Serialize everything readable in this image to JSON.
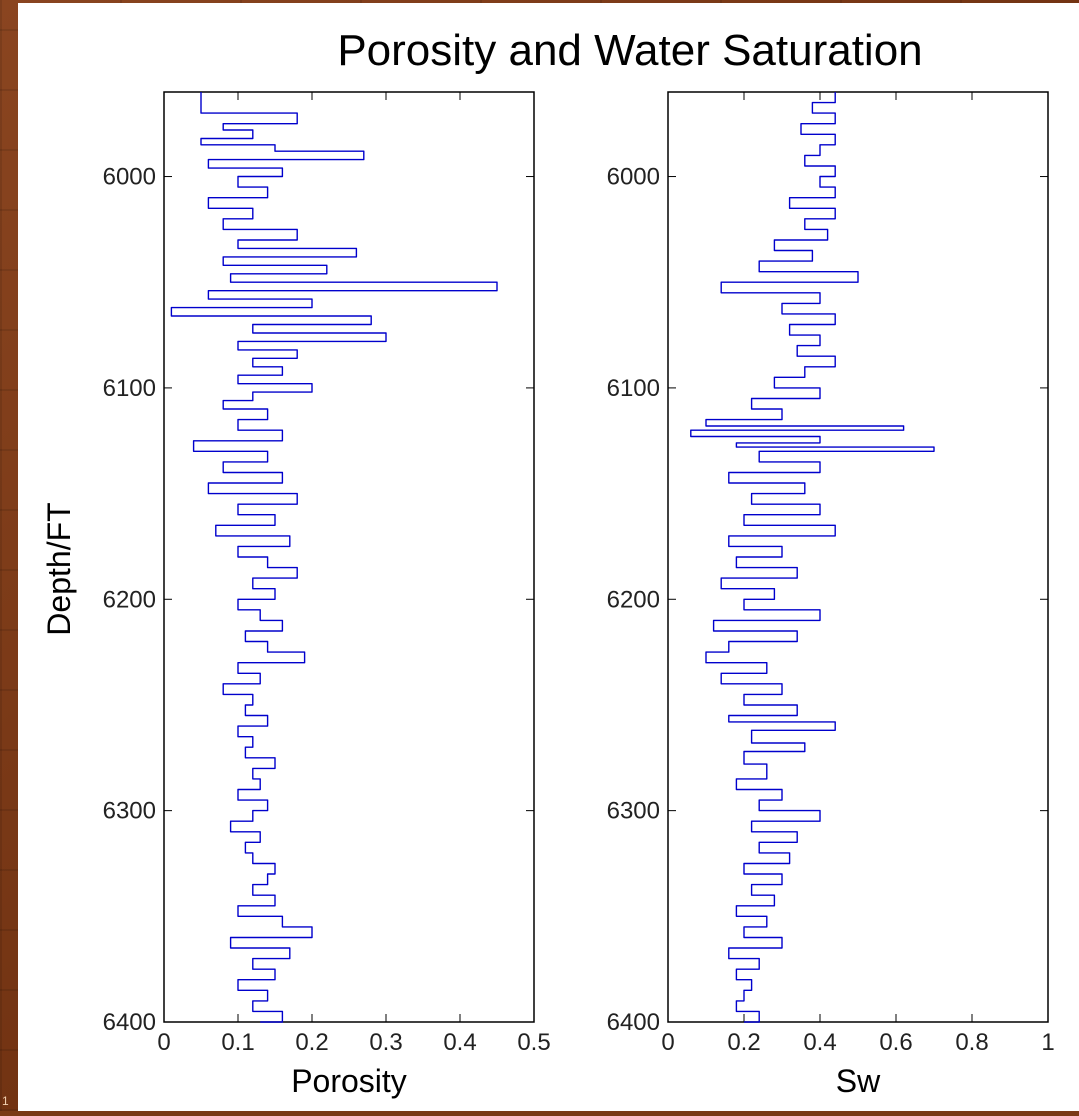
{
  "slide": {
    "page_mark": "1"
  },
  "chart_data": [
    {
      "type": "line",
      "title": "Porosity and Water Saturation",
      "xlabel": "Porosity",
      "ylabel": "Depth/FT",
      "xlim": [
        0,
        0.5
      ],
      "ylim": [
        5960,
        6400
      ],
      "y_reversed": true,
      "x_ticks": [
        "0",
        "0.1",
        "0.2",
        "0.3",
        "0.4",
        "0.5"
      ],
      "y_ticks": [
        "6000",
        "6100",
        "6200",
        "6300",
        "6400"
      ],
      "series": [
        {
          "color": "#0000cc",
          "depth": [
            5960,
            5970,
            5975,
            5978,
            5982,
            5985,
            5988,
            5992,
            5996,
            6000,
            6005,
            6010,
            6015,
            6020,
            6025,
            6030,
            6034,
            6038,
            6042,
            6046,
            6050,
            6054,
            6058,
            6062,
            6066,
            6070,
            6074,
            6078,
            6082,
            6086,
            6090,
            6094,
            6098,
            6102,
            6106,
            6110,
            6115,
            6120,
            6125,
            6130,
            6135,
            6140,
            6145,
            6150,
            6155,
            6160,
            6165,
            6170,
            6175,
            6180,
            6185,
            6190,
            6195,
            6200,
            6205,
            6210,
            6215,
            6220,
            6225,
            6230,
            6235,
            6240,
            6245,
            6250,
            6255,
            6260,
            6265,
            6270,
            6275,
            6280,
            6285,
            6290,
            6295,
            6300,
            6305,
            6310,
            6315,
            6320,
            6325,
            6330,
            6335,
            6340,
            6345,
            6350,
            6355,
            6360,
            6365,
            6370,
            6375,
            6380,
            6385,
            6390,
            6395,
            6400
          ],
          "values": [
            0.05,
            0.18,
            0.08,
            0.12,
            0.05,
            0.15,
            0.27,
            0.06,
            0.16,
            0.1,
            0.14,
            0.06,
            0.12,
            0.08,
            0.18,
            0.1,
            0.26,
            0.08,
            0.22,
            0.09,
            0.45,
            0.06,
            0.2,
            0.01,
            0.28,
            0.12,
            0.3,
            0.1,
            0.18,
            0.12,
            0.16,
            0.1,
            0.2,
            0.12,
            0.08,
            0.14,
            0.1,
            0.16,
            0.04,
            0.14,
            0.08,
            0.16,
            0.06,
            0.18,
            0.1,
            0.15,
            0.07,
            0.17,
            0.1,
            0.14,
            0.18,
            0.12,
            0.15,
            0.1,
            0.13,
            0.16,
            0.11,
            0.14,
            0.19,
            0.1,
            0.13,
            0.08,
            0.12,
            0.11,
            0.14,
            0.1,
            0.12,
            0.11,
            0.15,
            0.12,
            0.13,
            0.1,
            0.14,
            0.12,
            0.09,
            0.13,
            0.11,
            0.12,
            0.15,
            0.14,
            0.12,
            0.15,
            0.1,
            0.16,
            0.2,
            0.09,
            0.17,
            0.12,
            0.15,
            0.1,
            0.14,
            0.12,
            0.16,
            0.13
          ]
        }
      ]
    },
    {
      "type": "line",
      "xlabel": "Sw",
      "xlim": [
        0,
        1
      ],
      "ylim": [
        5960,
        6400
      ],
      "y_reversed": true,
      "x_ticks": [
        "0",
        "0.2",
        "0.4",
        "0.6",
        "0.8",
        "1"
      ],
      "y_ticks": [
        "6000",
        "6100",
        "6200",
        "6300",
        "6400"
      ],
      "series": [
        {
          "color": "#0000cc",
          "depth": [
            5960,
            5965,
            5970,
            5975,
            5980,
            5985,
            5990,
            5995,
            6000,
            6005,
            6010,
            6015,
            6020,
            6025,
            6030,
            6035,
            6040,
            6045,
            6050,
            6055,
            6060,
            6065,
            6070,
            6075,
            6080,
            6085,
            6090,
            6095,
            6100,
            6105,
            6110,
            6115,
            6118,
            6120,
            6123,
            6126,
            6128,
            6130,
            6135,
            6140,
            6145,
            6150,
            6155,
            6160,
            6165,
            6170,
            6175,
            6180,
            6185,
            6190,
            6195,
            6200,
            6205,
            6210,
            6215,
            6220,
            6225,
            6230,
            6235,
            6240,
            6245,
            6250,
            6255,
            6258,
            6262,
            6268,
            6272,
            6278,
            6285,
            6290,
            6295,
            6300,
            6305,
            6310,
            6315,
            6320,
            6325,
            6330,
            6335,
            6340,
            6345,
            6350,
            6355,
            6360,
            6365,
            6370,
            6375,
            6380,
            6385,
            6390,
            6395,
            6400
          ],
          "values": [
            0.44,
            0.38,
            0.44,
            0.35,
            0.44,
            0.4,
            0.36,
            0.44,
            0.4,
            0.44,
            0.32,
            0.44,
            0.36,
            0.42,
            0.28,
            0.38,
            0.24,
            0.5,
            0.14,
            0.4,
            0.3,
            0.44,
            0.32,
            0.4,
            0.34,
            0.44,
            0.36,
            0.28,
            0.4,
            0.22,
            0.3,
            0.1,
            0.62,
            0.06,
            0.4,
            0.18,
            0.7,
            0.24,
            0.4,
            0.16,
            0.36,
            0.22,
            0.4,
            0.2,
            0.44,
            0.16,
            0.3,
            0.18,
            0.34,
            0.14,
            0.28,
            0.2,
            0.4,
            0.12,
            0.34,
            0.16,
            0.1,
            0.26,
            0.14,
            0.3,
            0.2,
            0.34,
            0.16,
            0.44,
            0.22,
            0.36,
            0.2,
            0.26,
            0.18,
            0.3,
            0.24,
            0.4,
            0.22,
            0.34,
            0.24,
            0.32,
            0.2,
            0.3,
            0.22,
            0.28,
            0.18,
            0.26,
            0.2,
            0.3,
            0.16,
            0.24,
            0.18,
            0.22,
            0.2,
            0.18,
            0.24,
            0.2
          ]
        }
      ]
    }
  ]
}
